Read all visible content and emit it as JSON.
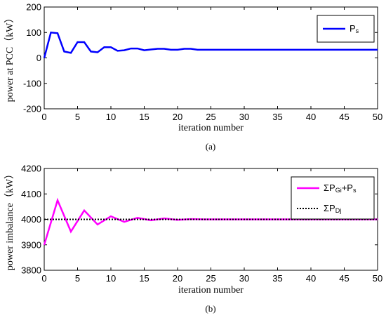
{
  "chart_data": [
    {
      "type": "line",
      "xlabel": "iteration number",
      "ylabel": "power at PCC（kW）",
      "caption": "(a)",
      "xlim": [
        0,
        50
      ],
      "ylim": [
        -200,
        200
      ],
      "xticks": [
        "0",
        "5",
        "10",
        "15",
        "20",
        "25",
        "30",
        "35",
        "40",
        "45",
        "50"
      ],
      "yticks": [
        "200",
        "100",
        "0",
        "-100",
        "-200"
      ],
      "legend_position": "top-right",
      "series": [
        {
          "name": "Ps",
          "legend_main": "P",
          "legend_sub": "s",
          "color": "#0000ff",
          "style": "solid",
          "x": [
            0,
            1,
            2,
            3,
            4,
            5,
            6,
            7,
            8,
            9,
            10,
            11,
            12,
            13,
            14,
            15,
            16,
            17,
            18,
            19,
            20,
            21,
            22,
            23,
            24,
            50
          ],
          "y": [
            0,
            100,
            97,
            25,
            20,
            62,
            62,
            25,
            22,
            42,
            42,
            28,
            30,
            37,
            37,
            30,
            33,
            36,
            36,
            32,
            32,
            36,
            36,
            32,
            32,
            32
          ]
        }
      ]
    },
    {
      "type": "line",
      "xlabel": "iteration number",
      "ylabel": "power imbalance（kW）",
      "caption": "(b)",
      "xlim": [
        0,
        50
      ],
      "ylim": [
        3800,
        4200
      ],
      "xticks": [
        "0",
        "5",
        "10",
        "15",
        "20",
        "25",
        "30",
        "35",
        "40",
        "45",
        "50"
      ],
      "yticks": [
        "4200",
        "4100",
        "4000",
        "3900",
        "3800"
      ],
      "legend_position": "top-right",
      "series": [
        {
          "name": "ΣPGi+Ps",
          "legend_parts": [
            [
              "ΣP",
              ""
            ],
            [
              "Gi",
              "sub"
            ],
            [
              "+P",
              ""
            ],
            [
              "s",
              "sub"
            ]
          ],
          "color": "#ff00ff",
          "style": "solid",
          "x": [
            0,
            2,
            4,
            6,
            8,
            10,
            12,
            14,
            16,
            18,
            20,
            22,
            24,
            50
          ],
          "y": [
            3900,
            4075,
            3952,
            4035,
            3980,
            4012,
            3990,
            4006,
            3996,
            4004,
            3998,
            4001,
            4000,
            4000
          ]
        },
        {
          "name": "ΣPDj",
          "legend_parts": [
            [
              "ΣP",
              ""
            ],
            [
              "Dj",
              "sub"
            ]
          ],
          "color": "#000000",
          "style": "dotted",
          "x": [
            0,
            50
          ],
          "y": [
            4000,
            4000
          ]
        }
      ]
    }
  ]
}
